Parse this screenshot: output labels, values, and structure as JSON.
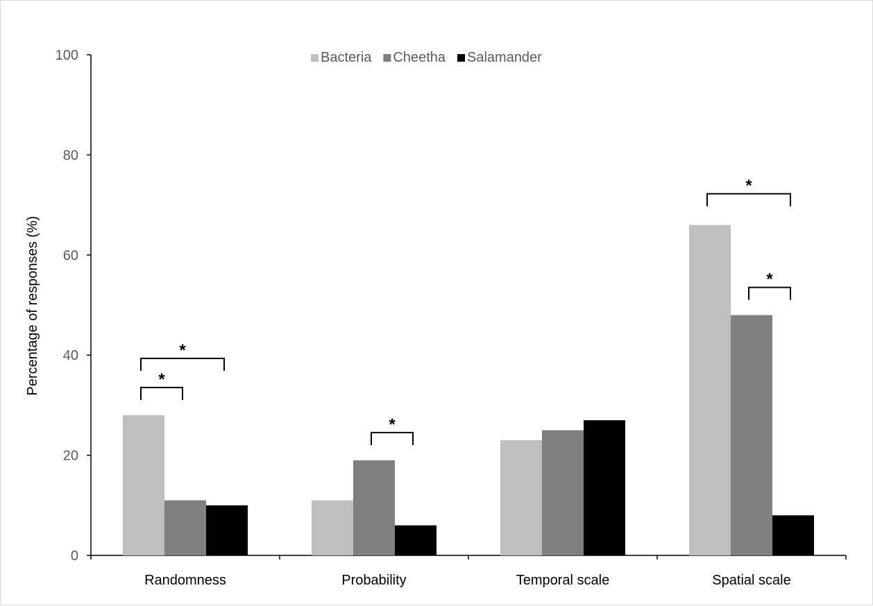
{
  "chart_data": {
    "type": "bar",
    "title": "",
    "xlabel": "",
    "ylabel": "Percentage of responses (%)",
    "ylim": [
      0,
      100
    ],
    "yticks": [
      0,
      20,
      40,
      60,
      80,
      100
    ],
    "categories": [
      "Randomness",
      "Probability",
      "Temporal scale",
      "Spatial scale"
    ],
    "series": [
      {
        "name": "Bacteria",
        "color": "#bfbfbf",
        "values": [
          28,
          11,
          23,
          66
        ]
      },
      {
        "name": "Cheetha",
        "color": "#7f7f7f",
        "values": [
          11,
          19,
          25,
          48
        ]
      },
      {
        "name": "Salamander",
        "color": "#000000",
        "values": [
          10,
          6,
          27,
          8
        ]
      }
    ],
    "legend_position": "top",
    "grid": false,
    "significance": [
      {
        "category": 0,
        "from_series": 0,
        "to_series": 2,
        "label": "*"
      },
      {
        "category": 0,
        "from_series": 0,
        "to_series": 1,
        "label": "*"
      },
      {
        "category": 1,
        "from_series": 1,
        "to_series": 2,
        "label": "*"
      },
      {
        "category": 3,
        "from_series": 0,
        "to_series": 2,
        "label": "*"
      },
      {
        "category": 3,
        "from_series": 1,
        "to_series": 2,
        "label": "*"
      }
    ]
  }
}
